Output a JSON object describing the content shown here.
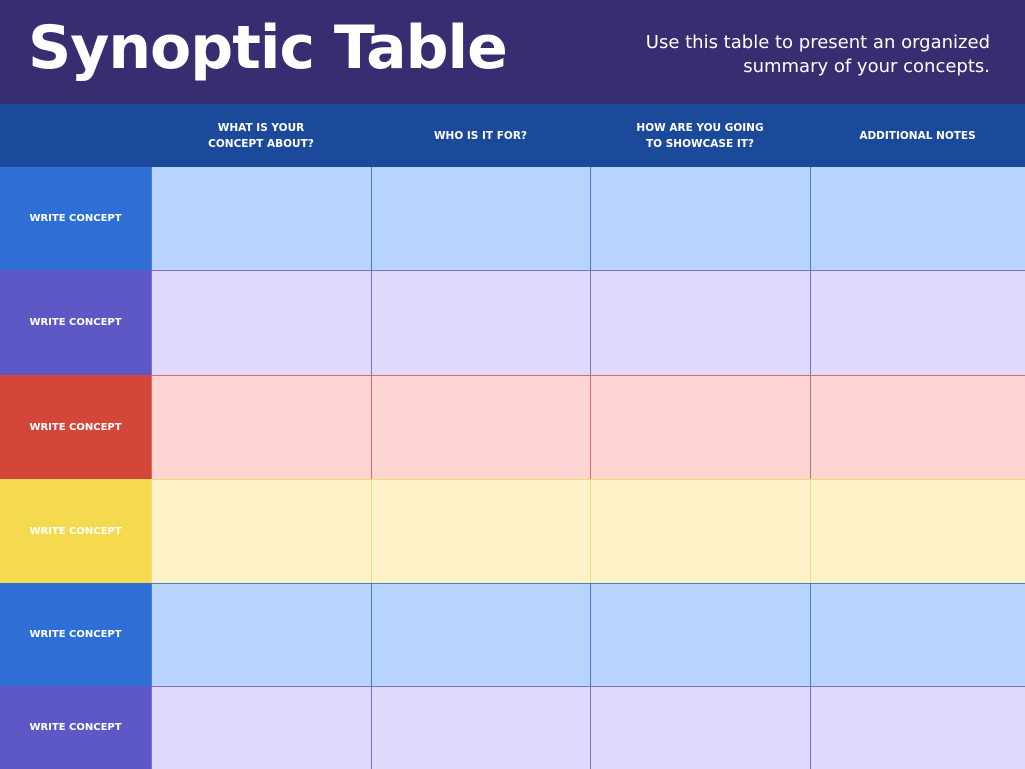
{
  "header": {
    "title": "Synoptic Table",
    "subtitle": "Use this table to present an organized\nsummary of your concepts."
  },
  "table": {
    "columns": [
      "WHAT IS YOUR\nCONCEPT ABOUT?",
      "WHO IS IT FOR?",
      "HOW ARE YOU GOING\nTO SHOWCASE IT?",
      "ADDITIONAL NOTES"
    ],
    "rows": [
      {
        "label": "WRITE CONCEPT",
        "color": "#2e6fd6",
        "cell_color": "#b8d4fd",
        "line_color": "#4f79c8"
      },
      {
        "label": "WRITE CONCEPT",
        "color": "#5e57c6",
        "cell_color": "#dfd9fe",
        "line_color": "#7a72cc"
      },
      {
        "label": "WRITE CONCEPT",
        "color": "#d5463a",
        "cell_color": "#fed5d2",
        "line_color": "#d96c64"
      },
      {
        "label": "WRITE CONCEPT",
        "color": "#f5d94f",
        "cell_color": "#fef2c9",
        "line_color": "#f0dc7a"
      },
      {
        "label": "WRITE CONCEPT",
        "color": "#2e6fd6",
        "cell_color": "#b8d4fd",
        "line_color": "#4f79c8"
      },
      {
        "label": "WRITE CONCEPT",
        "color": "#5e57c6",
        "cell_color": "#dfd9fe",
        "line_color": "#7a72cc"
      }
    ]
  },
  "colors": {
    "title_bar": "#362e70",
    "header_row": "#1b4a9a",
    "header_text": "#ffffff"
  }
}
